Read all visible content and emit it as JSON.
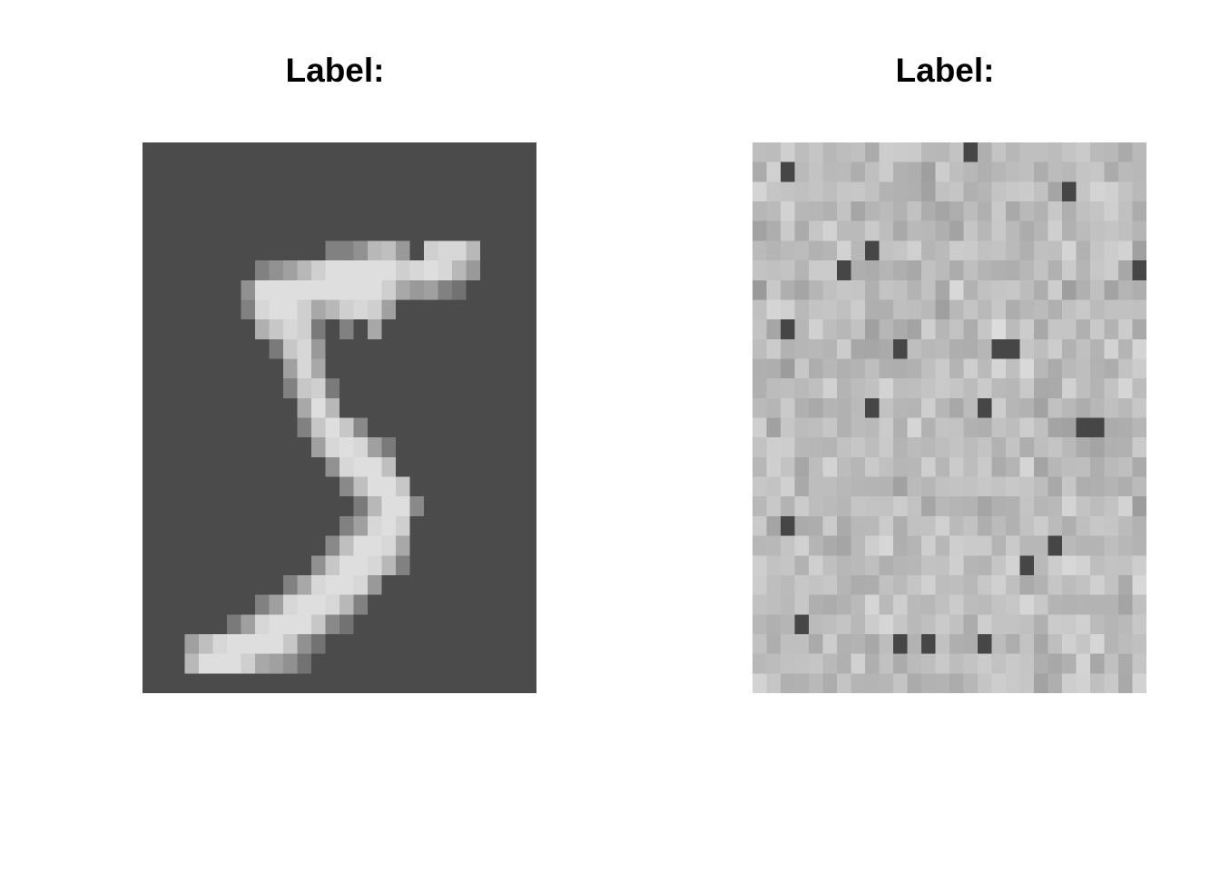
{
  "panels": [
    {
      "title": "Label:",
      "image_semantic": "handwritten-digit-5",
      "grid": {
        "rows": 28,
        "cols": 28
      },
      "background_gray": "#4b4b4b"
    },
    {
      "title": "Label:",
      "image_semantic": "random-noise",
      "grid": {
        "rows": 28,
        "cols": 28
      },
      "base_gray": "#b7b7b7"
    }
  ]
}
